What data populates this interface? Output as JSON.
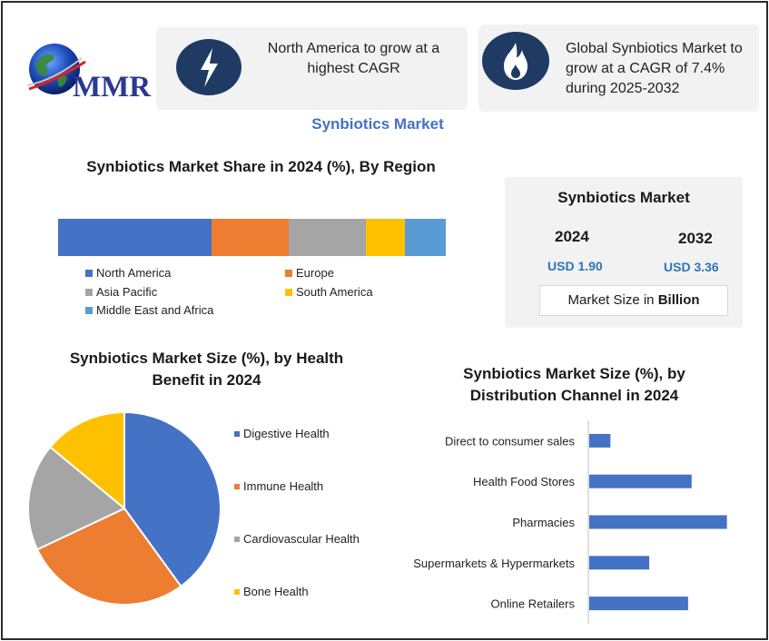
{
  "logo": {
    "text": "MMR",
    "icon": "globe-icon"
  },
  "callouts": [
    {
      "icon": "lightning-bolt-icon",
      "text": "North America to grow at a highest CAGR"
    },
    {
      "icon": "flame-icon",
      "text": "Global Synbiotics Market to grow at a CAGR of 7.4% during 2025-2032"
    }
  ],
  "main_title": "Synbiotics Market",
  "region_title": "Synbiotics Market Share in 2024 (%), By Region",
  "health_title": "Synbiotics Market Size (%), by Health Benefit in 2024",
  "distribution_title": "Synbiotics Market Size (%), by Distribution Channel in 2024",
  "size_box": {
    "title": "Synbiotics Market",
    "year_start": "2024",
    "value_start": "USD 1.90",
    "year_end": "2032",
    "value_end": "USD 3.36",
    "note_prefix": "Market Size in ",
    "note_bold": "Billion"
  },
  "colors": {
    "blue": "#4472c4",
    "orange": "#ed7d31",
    "gray": "#a5a5a5",
    "yellow": "#ffc000",
    "light_blue": "#5b9bd5",
    "accent": "#2e75b6",
    "icon_circle": "#1f3a63"
  },
  "chart_data": [
    {
      "type": "bar",
      "orientation": "horizontal-stacked",
      "title": "Synbiotics Market Share in 2024 (%), By Region",
      "series": [
        {
          "name": "North America",
          "values": [
            39.5
          ],
          "color": "#4472c4"
        },
        {
          "name": "Europe",
          "values": [
            20
          ],
          "color": "#ed7d31"
        },
        {
          "name": "Asia Pacific",
          "values": [
            20
          ],
          "color": "#a5a5a5"
        },
        {
          "name": "South America",
          "values": [
            10
          ],
          "color": "#ffc000"
        },
        {
          "name": "Middle East and Africa",
          "values": [
            10.5
          ],
          "color": "#5b9bd5"
        }
      ],
      "legend": "bottom"
    },
    {
      "type": "pie",
      "title": "Synbiotics Market Size (%), by Health Benefit in 2024",
      "categories": [
        "Digestive Health",
        "Immune Health",
        "Cardiovascular Health",
        "Bone Health"
      ],
      "values": [
        40,
        28,
        18,
        14
      ],
      "colors": [
        "#4472c4",
        "#ed7d31",
        "#a5a5a5",
        "#ffc000"
      ],
      "legend": "right"
    },
    {
      "type": "bar",
      "orientation": "horizontal",
      "title": "Synbiotics Market Size (%), by Distribution Channel in 2024",
      "categories": [
        "Direct to consumer sales",
        "Health Food Stores",
        "Pharmacies",
        "Supermarkets & Hypermarkets",
        "Online Retailers"
      ],
      "values": [
        6,
        29,
        39,
        17,
        28
      ],
      "xlim": [
        0,
        45
      ],
      "color": "#4472c4",
      "grid": false
    }
  ]
}
